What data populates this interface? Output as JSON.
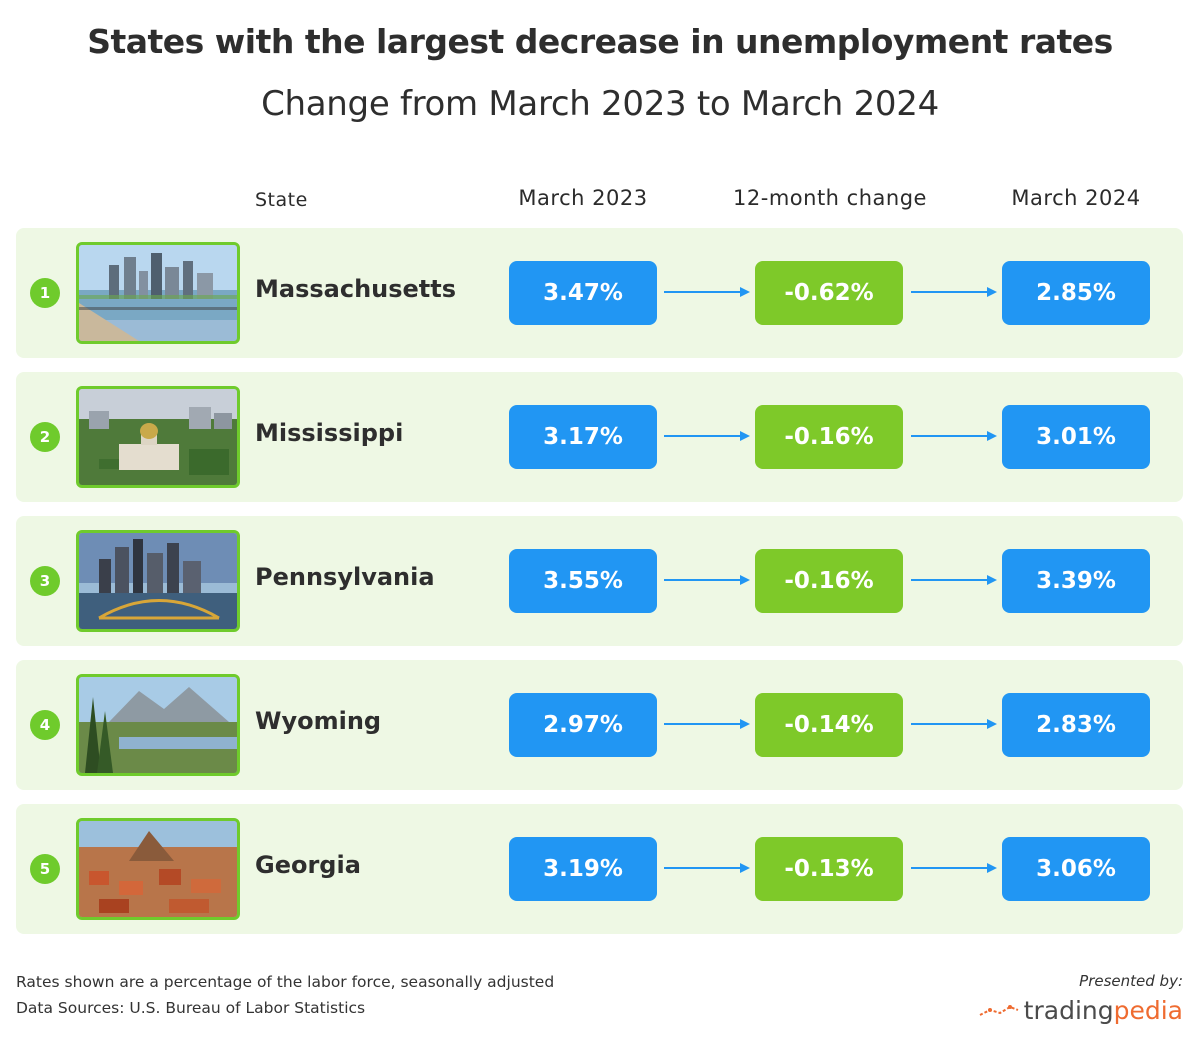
{
  "title": "States with the largest decrease in unemployment rates",
  "subtitle": "Change from March 2023 to March 2024",
  "headers": {
    "state": "State",
    "march2023": "March 2023",
    "change": "12-month change",
    "march2024": "March 2024"
  },
  "chart_data": {
    "type": "table",
    "title": "States with the largest decrease in unemployment rates",
    "subtitle": "Change from March 2023 to March 2024",
    "columns": [
      "State",
      "March 2023",
      "12-month change",
      "March 2024"
    ],
    "rows": [
      {
        "rank": "1",
        "state": "Massachusetts",
        "march2023": "3.47%",
        "change": "-0.62%",
        "march2024": "2.85%"
      },
      {
        "rank": "2",
        "state": "Mississippi",
        "march2023": "3.17%",
        "change": "-0.16%",
        "march2024": "3.01%"
      },
      {
        "rank": "3",
        "state": "Pennsylvania",
        "march2023": "3.55%",
        "change": "-0.16%",
        "march2024": "3.39%"
      },
      {
        "rank": "4",
        "state": "Wyoming",
        "march2023": "2.97%",
        "change": "-0.14%",
        "march2024": "2.83%"
      },
      {
        "rank": "5",
        "state": "Georgia",
        "march2023": "3.19%",
        "change": "-0.13%",
        "march2024": "3.06%"
      }
    ]
  },
  "footer": {
    "note": "Rates shown are a percentage of the labor force, seasonally adjusted",
    "sources": "Data Sources: U.S. Bureau of Labor Statistics",
    "presented_by": "Presented by:",
    "brand_part1": "trading",
    "brand_part2": "pedia"
  },
  "colors": {
    "blue": "#2196f3",
    "green": "#7ec929",
    "row_bg": "#eef8e4",
    "brand_orange": "#ef6b30"
  }
}
